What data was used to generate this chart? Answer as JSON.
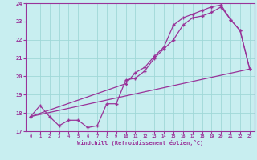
{
  "xlabel": "Windchill (Refroidissement éolien,°C)",
  "xlim": [
    -0.5,
    23.5
  ],
  "ylim": [
    17,
    24
  ],
  "xticks": [
    0,
    1,
    2,
    3,
    4,
    5,
    6,
    7,
    8,
    9,
    10,
    11,
    12,
    13,
    14,
    15,
    16,
    17,
    18,
    19,
    20,
    21,
    22,
    23
  ],
  "yticks": [
    17,
    18,
    19,
    20,
    21,
    22,
    23,
    24
  ],
  "bg_color": "#c8eef0",
  "grid_color": "#a0d8d8",
  "line_color": "#993399",
  "line1_x": [
    0,
    1,
    2,
    3,
    4,
    5,
    6,
    7,
    8,
    9,
    10,
    11,
    12,
    13,
    14,
    15,
    16,
    17,
    18,
    19,
    20,
    21,
    22,
    23
  ],
  "line1_y": [
    17.8,
    18.4,
    17.8,
    17.3,
    17.6,
    17.6,
    17.2,
    17.3,
    18.5,
    18.5,
    19.8,
    19.9,
    20.3,
    21.0,
    21.5,
    22.0,
    22.8,
    23.2,
    23.3,
    23.5,
    23.8,
    23.1,
    22.5,
    20.4
  ],
  "line2_x": [
    0,
    10,
    11,
    12,
    13,
    14,
    15,
    16,
    17,
    18,
    19,
    20,
    21,
    22,
    23
  ],
  "line2_y": [
    17.8,
    19.6,
    20.2,
    20.5,
    21.1,
    21.6,
    22.8,
    23.2,
    23.4,
    23.6,
    23.8,
    23.9,
    23.1,
    22.5,
    20.4
  ],
  "line3_x": [
    0,
    23
  ],
  "line3_y": [
    17.8,
    20.4
  ]
}
